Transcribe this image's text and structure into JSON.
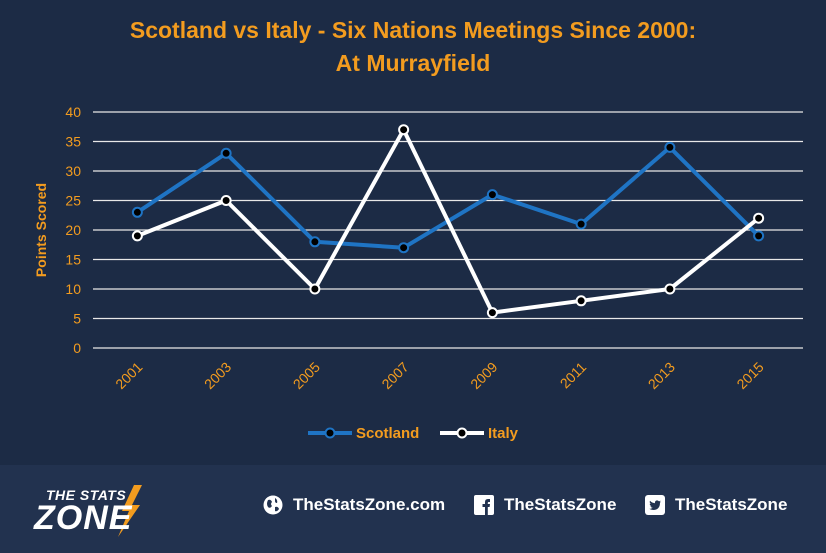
{
  "chart_data": {
    "type": "line",
    "title_lines": [
      "Scotland vs Italy - Six Nations Meetings Since 2000:",
      "At Murrayfield"
    ],
    "xlabel": "",
    "ylabel": "Points Scored",
    "categories": [
      "2001",
      "2003",
      "2005",
      "2007",
      "2009",
      "2011",
      "2013",
      "2015"
    ],
    "yticks": [
      "0",
      "5",
      "10",
      "15",
      "20",
      "25",
      "30",
      "35",
      "40"
    ],
    "ylim": [
      0,
      40
    ],
    "grid": "horizontal",
    "legend_position": "bottom",
    "series": [
      {
        "name": "Scotland",
        "values": [
          23,
          33,
          18,
          17,
          26,
          21,
          34,
          19
        ],
        "color": "#1f74c4"
      },
      {
        "name": "Italy",
        "values": [
          19,
          25,
          10,
          37,
          6,
          8,
          10,
          22
        ],
        "color": "#ffffff"
      }
    ]
  },
  "colors": {
    "accent": "#f39c1f",
    "background": "#1c2b45",
    "grid": "#e8e8e8"
  },
  "footer": {
    "brand_top": "THE STATS",
    "brand_bottom": "ZONE",
    "website": "TheStatsZone.com",
    "facebook": "TheStatsZone",
    "twitter": "TheStatsZone",
    "icons": [
      "globe-icon",
      "facebook-icon",
      "twitter-icon"
    ]
  }
}
